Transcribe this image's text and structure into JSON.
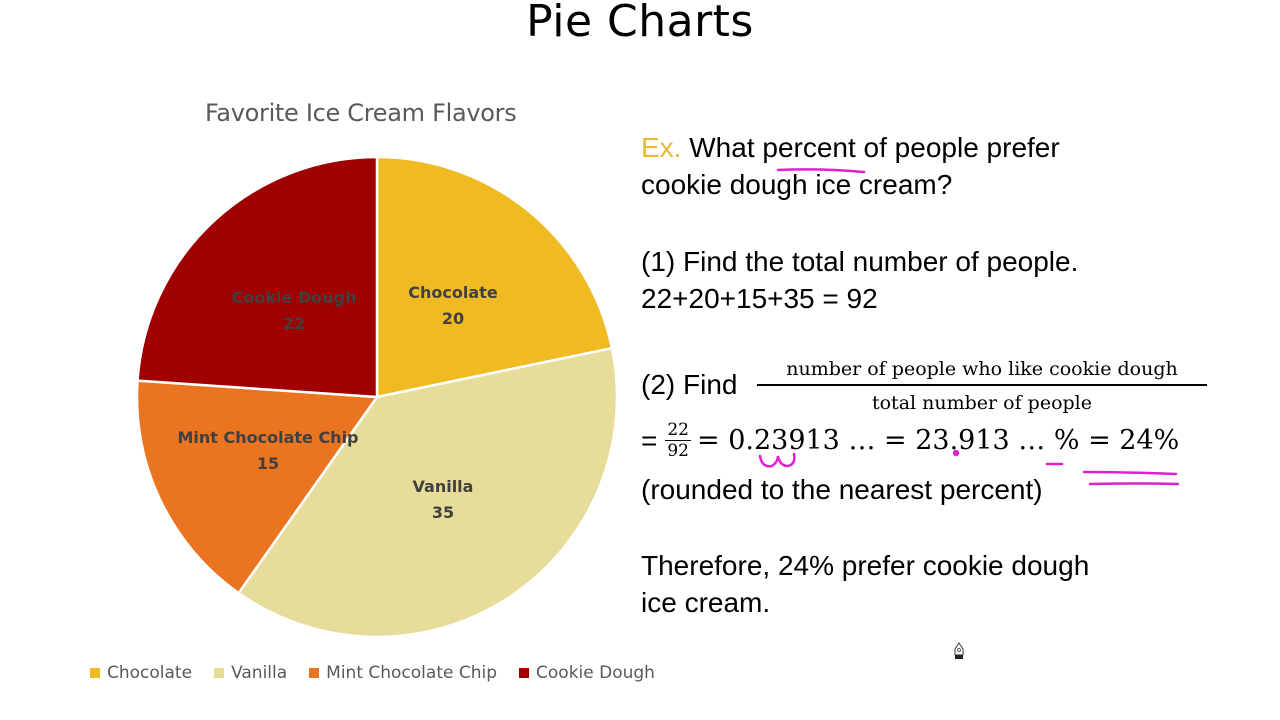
{
  "slide": {
    "title": "Pie Charts"
  },
  "chart_data": {
    "type": "pie",
    "title": "Favorite Ice Cream Flavors",
    "categories": [
      "Chocolate",
      "Vanilla",
      "Mint Chocolate Chip",
      "Cookie Dough"
    ],
    "values": [
      20,
      35,
      15,
      22
    ],
    "colors": [
      "#F0BA22",
      "#E8DC9A",
      "#EA7420",
      "#A00000"
    ],
    "start_angle_deg": 0,
    "direction": "clockwise",
    "data_labels": [
      {
        "name": "Chocolate",
        "value": "20"
      },
      {
        "name": "Vanilla",
        "value": "35"
      },
      {
        "name": "Mint Chocolate Chip",
        "value": "15"
      },
      {
        "name": "Cookie Dough",
        "value": "22"
      }
    ],
    "legend_position": "bottom",
    "xlabel": "",
    "ylabel": ""
  },
  "legend": {
    "items": [
      {
        "label": "Chocolate",
        "color": "#F0BA22"
      },
      {
        "label": "Vanilla",
        "color": "#E8DC9A"
      },
      {
        "label": "Mint Chocolate Chip",
        "color": "#EA7420"
      },
      {
        "label": "Cookie Dough",
        "color": "#A00000"
      }
    ]
  },
  "example": {
    "ex_label": "Ex.",
    "question_line1": " What percent of people prefer",
    "question_line2": "cookie dough ice cream?",
    "step1_label": "(1) Find the total number of people.",
    "step1_calc": "22+20+15+35 = 92",
    "step2_label": "(2) Find",
    "fraction_numerator": "number of people who like cookie dough",
    "fraction_denominator": "total number of people",
    "calc_equals": "=",
    "calc_frac_num": "22",
    "calc_frac_den": "92",
    "calc_rest": "= 0.23913 … = 23.913 … % = 24%",
    "rounded_note": "(rounded to the nearest percent)",
    "conclusion_line1": "Therefore, 24% prefer cookie dough",
    "conclusion_line2": "ice cream."
  },
  "annotations": {
    "ink_color": "#E020D0"
  }
}
